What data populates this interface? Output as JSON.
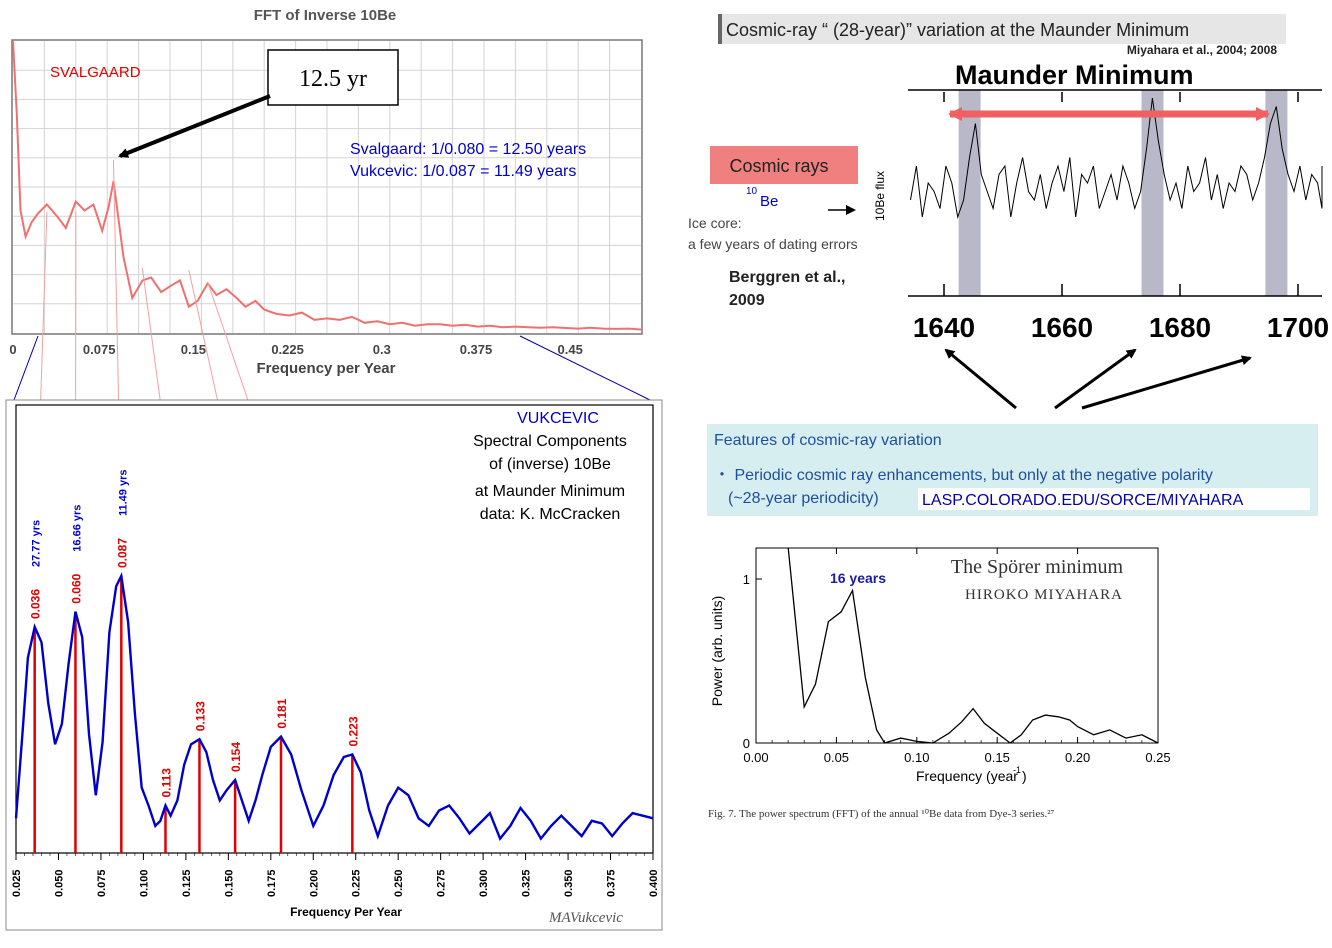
{
  "panel_a": {
    "title": "FFT of Inverse 10Be",
    "label": "SVALGAARD",
    "callout": "12.5 yr",
    "note_line1": "Svalgaard:  1/0.080 = 12.50 years",
    "note_line2": "Vukcevic:    1/0.087 = 11.49 years",
    "xlabel": "Frequency per Year",
    "ticks": [
      "0",
      "0.075",
      "0.15",
      "0.225",
      "0.3",
      "0.375",
      "0.45"
    ],
    "colors": {
      "line": "#f07070",
      "label": "#e00000",
      "note": "#0000cc",
      "grid": "#d0d0d0"
    }
  },
  "panel_b": {
    "name": "VUKCEVIC",
    "desc1": "Spectral Components",
    "desc2": "of (inverse) 10Be",
    "desc3": "at Maunder Minimum",
    "desc4": "data: K. McCracken",
    "xlabel": "Frequency Per Year",
    "signature": "MAVukcevic",
    "ticks": [
      "0.025",
      "0.050",
      "0.075",
      "0.100",
      "0.125",
      "0.150",
      "0.175",
      "0.200",
      "0.225",
      "0.250",
      "0.275",
      "0.300",
      "0.325",
      "0.350",
      "0.375",
      "0.400"
    ],
    "peaks": [
      "0.036",
      "0.060",
      "0.087",
      "0.113",
      "0.133",
      "0.154",
      "0.181",
      "0.223"
    ],
    "periods": [
      "27.77 yrs",
      "16.66 yrs",
      "11.49 yrs"
    ],
    "colors": {
      "curve": "#0000cc",
      "marker": "#e00000"
    }
  },
  "panel_c": {
    "title": "Cosmic-ray “ (28-year)” variation at the Maunder Minimum",
    "citation": "Miyahara et al., 2004; 2008",
    "header": "Maunder Minimum",
    "badge": "Cosmic rays",
    "be_sup": "10",
    "be_text": "Be",
    "ice1": "Ice core:",
    "ice2": "a few years of dating errors",
    "cite2a": "Berggren et al.,",
    "cite2b": "2009",
    "ylabel": "10Be flux",
    "years": [
      "1640",
      "1660",
      "1680",
      "1700"
    ],
    "colors": {
      "badge": "#f08080",
      "band": "#b8b8c8",
      "arrow": "#f06060"
    }
  },
  "panel_d": {
    "heading": "Features of cosmic-ray variation",
    "bullet": "・ Periodic cosmic ray enhancements, but only at the negative polarity",
    "line2": "(~28-year periodicity)",
    "link": "LASP.COLORADO.EDU/SORCE/MIYAHARA",
    "colors": {
      "box": "#d6eef0",
      "text": "#1f4fa0"
    }
  },
  "panel_e": {
    "title": "The Spörer minimum",
    "author": "HIROKO MIYAHARA",
    "annotation": "16 years",
    "ylabel": "Power (arb. units)",
    "xlabel_main": "Frequency (year",
    "xlabel_sup": "-1",
    "xlabel_end": ")",
    "yticks": [
      "0",
      "1"
    ],
    "xticks": [
      "0.00",
      "0.05",
      "0.10",
      "0.15",
      "0.20",
      "0.25"
    ],
    "caption": "Fig. 7.   The power spectrum (FFT) of the annual ¹⁰Be data from Dye-3 series.²⁷"
  },
  "chart_data": [
    {
      "type": "line",
      "title": "FFT of Inverse 10Be",
      "xlabel": "Frequency per Year",
      "ylabel": "",
      "xlim": [
        0,
        0.5
      ],
      "grid": true,
      "x": [
        0.0,
        0.003,
        0.006,
        0.01,
        0.015,
        0.02,
        0.027,
        0.035,
        0.042,
        0.05,
        0.057,
        0.064,
        0.071,
        0.076,
        0.08,
        0.084,
        0.088,
        0.095,
        0.103,
        0.11,
        0.118,
        0.125,
        0.133,
        0.14,
        0.147,
        0.155,
        0.162,
        0.17,
        0.178,
        0.185,
        0.193,
        0.2,
        0.21,
        0.22,
        0.23,
        0.24,
        0.25,
        0.26,
        0.27,
        0.28,
        0.29,
        0.3,
        0.31,
        0.32,
        0.33,
        0.34,
        0.35,
        0.36,
        0.37,
        0.38,
        0.39,
        0.4,
        0.41,
        0.42,
        0.43,
        0.44,
        0.45,
        0.46,
        0.47,
        0.48,
        0.49,
        0.5
      ],
      "y": [
        10.0,
        7.5,
        4.2,
        3.3,
        3.8,
        4.1,
        4.4,
        4.0,
        3.6,
        4.5,
        4.2,
        4.4,
        3.5,
        4.3,
        5.2,
        3.9,
        2.6,
        1.2,
        1.8,
        1.9,
        1.4,
        1.6,
        1.8,
        0.9,
        1.1,
        1.7,
        1.3,
        1.5,
        1.2,
        0.9,
        1.1,
        0.8,
        0.65,
        0.6,
        0.7,
        0.45,
        0.5,
        0.45,
        0.55,
        0.35,
        0.4,
        0.3,
        0.35,
        0.25,
        0.3,
        0.3,
        0.25,
        0.28,
        0.22,
        0.25,
        0.2,
        0.22,
        0.2,
        0.18,
        0.2,
        0.17,
        0.15,
        0.18,
        0.15,
        0.14,
        0.15,
        0.12
      ],
      "annotations": [
        "12.5 yr",
        "SVALGAARD"
      ]
    },
    {
      "type": "line",
      "title": "",
      "xlabel": "Frequency Per Year",
      "xlim": [
        0.025,
        0.4
      ],
      "peaks": [
        0.036,
        0.06,
        0.087,
        0.113,
        0.133,
        0.154,
        0.181,
        0.223
      ],
      "peak_heights": [
        0.8,
        0.86,
        1.0,
        0.1,
        0.36,
        0.2,
        0.37,
        0.3
      ],
      "periods": [
        "27.77 yrs",
        "16.66 yrs",
        "11.49 yrs"
      ],
      "x": [
        0.025,
        0.029,
        0.032,
        0.036,
        0.04,
        0.044,
        0.048,
        0.052,
        0.056,
        0.06,
        0.064,
        0.068,
        0.072,
        0.076,
        0.08,
        0.084,
        0.087,
        0.091,
        0.095,
        0.099,
        0.103,
        0.107,
        0.11,
        0.113,
        0.116,
        0.12,
        0.124,
        0.128,
        0.133,
        0.137,
        0.141,
        0.145,
        0.149,
        0.154,
        0.158,
        0.162,
        0.166,
        0.17,
        0.175,
        0.181,
        0.187,
        0.193,
        0.2,
        0.206,
        0.212,
        0.218,
        0.223,
        0.228,
        0.233,
        0.238,
        0.244,
        0.25,
        0.256,
        0.262,
        0.268,
        0.274,
        0.28,
        0.286,
        0.292,
        0.298,
        0.304,
        0.31,
        0.316,
        0.322,
        0.328,
        0.334,
        0.34,
        0.346,
        0.352,
        0.358,
        0.364,
        0.37,
        0.376,
        0.382,
        0.388,
        0.394,
        0.4
      ],
      "y": [
        0.05,
        0.4,
        0.68,
        0.8,
        0.74,
        0.5,
        0.34,
        0.42,
        0.66,
        0.86,
        0.76,
        0.38,
        0.14,
        0.35,
        0.78,
        0.96,
        1.0,
        0.82,
        0.46,
        0.17,
        0.1,
        0.02,
        0.04,
        0.1,
        0.06,
        0.12,
        0.26,
        0.34,
        0.36,
        0.31,
        0.2,
        0.12,
        0.16,
        0.2,
        0.12,
        0.04,
        0.12,
        0.22,
        0.33,
        0.37,
        0.3,
        0.16,
        0.02,
        0.1,
        0.22,
        0.29,
        0.3,
        0.23,
        0.08,
        -0.02,
        0.1,
        0.17,
        0.14,
        0.05,
        0.02,
        0.08,
        0.1,
        0.05,
        -0.01,
        0.03,
        0.07,
        -0.03,
        0.02,
        0.09,
        0.04,
        -0.03,
        0.02,
        0.06,
        0.02,
        -0.02,
        0.04,
        0.03,
        -0.02,
        0.03,
        0.07,
        0.06,
        0.05
      ]
    },
    {
      "type": "line",
      "title": "Maunder Minimum",
      "ylabel": "10Be flux",
      "xlim": [
        1635,
        1712
      ],
      "xticks": [
        1640,
        1660,
        1680,
        1700
      ],
      "highlight_bands": [
        [
          1644,
          1648
        ],
        [
          1675,
          1679
        ],
        [
          1696,
          1699
        ]
      ],
      "x": [
        1635,
        1636,
        1637,
        1638,
        1639,
        1640,
        1641,
        1642,
        1643,
        1644,
        1645,
        1646,
        1647,
        1648,
        1649,
        1650,
        1651,
        1652,
        1653,
        1654,
        1655,
        1656,
        1657,
        1658,
        1659,
        1660,
        1661,
        1662,
        1663,
        1664,
        1665,
        1666,
        1667,
        1668,
        1669,
        1670,
        1671,
        1672,
        1673,
        1674,
        1675,
        1676,
        1677,
        1678,
        1679,
        1680,
        1681,
        1682,
        1683,
        1684,
        1685,
        1686,
        1687,
        1688,
        1689,
        1690,
        1691,
        1692,
        1693,
        1694,
        1695,
        1696,
        1697,
        1698,
        1699,
        1700,
        1701,
        1702,
        1703,
        1704,
        1705,
        1706,
        1707,
        1708,
        1709,
        1710,
        1711,
        1712
      ],
      "y": [
        0.4,
        0.6,
        0.3,
        0.5,
        0.45,
        0.35,
        0.6,
        0.5,
        0.3,
        0.4,
        0.65,
        0.85,
        0.55,
        0.45,
        0.35,
        0.55,
        0.6,
        0.3,
        0.5,
        0.65,
        0.45,
        0.4,
        0.55,
        0.35,
        0.5,
        0.6,
        0.45,
        0.65,
        0.3,
        0.55,
        0.5,
        0.6,
        0.35,
        0.45,
        0.55,
        0.4,
        0.6,
        0.5,
        0.35,
        0.45,
        0.7,
        1.0,
        0.75,
        0.55,
        0.4,
        0.5,
        0.35,
        0.6,
        0.45,
        0.5,
        0.65,
        0.4,
        0.55,
        0.35,
        0.5,
        0.45,
        0.6,
        0.55,
        0.4,
        0.5,
        0.65,
        0.85,
        0.95,
        0.7,
        0.55,
        0.45,
        0.6,
        0.4,
        0.55,
        0.5,
        0.35,
        0.45,
        0.55,
        0.4,
        0.5,
        0.6,
        0.45,
        0.4
      ]
    },
    {
      "type": "line",
      "title": "The Spörer minimum",
      "xlabel": "Frequency (year-1)",
      "ylabel": "Power (arb. units)",
      "xlim": [
        0,
        0.25
      ],
      "ylim": [
        0,
        1.2
      ],
      "annotations": [
        "16 years"
      ],
      "x": [
        0.02,
        0.03,
        0.037,
        0.045,
        0.053,
        0.06,
        0.068,
        0.075,
        0.08,
        0.09,
        0.1,
        0.11,
        0.12,
        0.128,
        0.135,
        0.142,
        0.15,
        0.158,
        0.165,
        0.172,
        0.18,
        0.188,
        0.195,
        0.2,
        0.21,
        0.22,
        0.23,
        0.24,
        0.25
      ],
      "y": [
        1.25,
        0.22,
        0.36,
        0.74,
        0.8,
        0.93,
        0.4,
        0.08,
        0.0,
        0.03,
        0.01,
        0.0,
        0.06,
        0.13,
        0.21,
        0.12,
        0.06,
        0.0,
        0.05,
        0.14,
        0.17,
        0.16,
        0.14,
        0.1,
        0.05,
        0.08,
        0.03,
        0.05,
        0.0
      ]
    }
  ]
}
